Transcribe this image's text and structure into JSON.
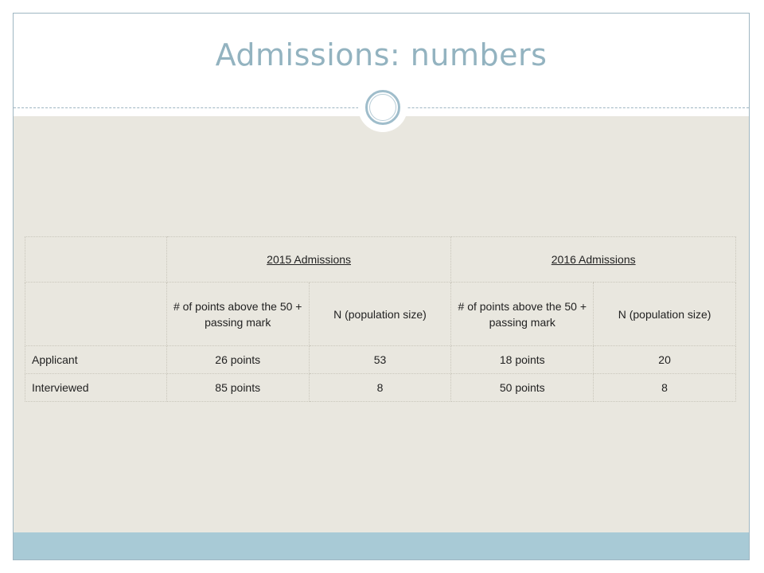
{
  "slide": {
    "title": "Admissions: numbers"
  },
  "table": {
    "corner_header": "",
    "corner_subheader": "",
    "year_headers": [
      "2015 Admissions",
      "2016 Admissions"
    ],
    "sub_headers": [
      "# of points above the 50 + passing mark",
      "N (population size)",
      "# of points above the 50 + passing mark",
      "N (population size)"
    ],
    "rows": [
      {
        "label": "Applicant",
        "cells": [
          "26 points",
          "53",
          "18 points",
          "20"
        ]
      },
      {
        "label": "Interviewed",
        "cells": [
          "85 points",
          "8",
          "50  points",
          "8"
        ]
      }
    ]
  },
  "colors": {
    "title": "#93b3c0",
    "content_background": "#e9e7df",
    "footer_band": "#a8cad6",
    "frame": "#9fb6c2"
  }
}
